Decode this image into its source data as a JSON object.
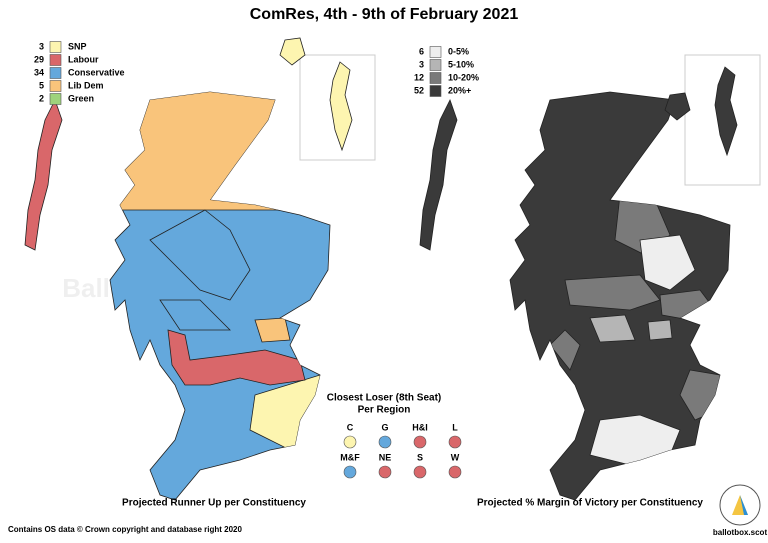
{
  "title": "ComRes, 4th - 9th of February 2021",
  "runner_up_legend": [
    {
      "count": 3,
      "label": "SNP",
      "color": "#fdf5b0"
    },
    {
      "count": 29,
      "label": "Labour",
      "color": "#d9676a"
    },
    {
      "count": 34,
      "label": "Conservative",
      "color": "#64a8dc"
    },
    {
      "count": 5,
      "label": "Lib Dem",
      "color": "#f9c47b"
    },
    {
      "count": 2,
      "label": "Green",
      "color": "#9ed37c"
    }
  ],
  "margin_legend": [
    {
      "count": 6,
      "label": "0-5%",
      "color": "#eeeeee"
    },
    {
      "count": 3,
      "label": "5-10%",
      "color": "#b5b5b5"
    },
    {
      "count": 12,
      "label": "10-20%",
      "color": "#7a7a7a"
    },
    {
      "count": 52,
      "label": "20%+",
      "color": "#3a3a3a"
    }
  ],
  "closest_loser": {
    "title": "Closest Loser (8th Seat)",
    "subtitle": "Per Region",
    "regions": [
      {
        "label": "C",
        "color": "#fdf5b0"
      },
      {
        "label": "G",
        "color": "#64a8dc"
      },
      {
        "label": "H&I",
        "color": "#d9676a"
      },
      {
        "label": "L",
        "color": "#d9676a"
      },
      {
        "label": "M&F",
        "color": "#64a8dc"
      },
      {
        "label": "NE",
        "color": "#d9676a"
      },
      {
        "label": "S",
        "color": "#d9676a"
      },
      {
        "label": "W",
        "color": "#d9676a"
      }
    ]
  },
  "left_caption": "Projected Runner Up per Constituency",
  "right_caption": "Projected % Margin of Victory per Constituency",
  "footer": "Contains OS data © Crown copyright and database right 2020",
  "watermark": "Ballot Box Scotland",
  "logo_text": "ballotbox.scot"
}
